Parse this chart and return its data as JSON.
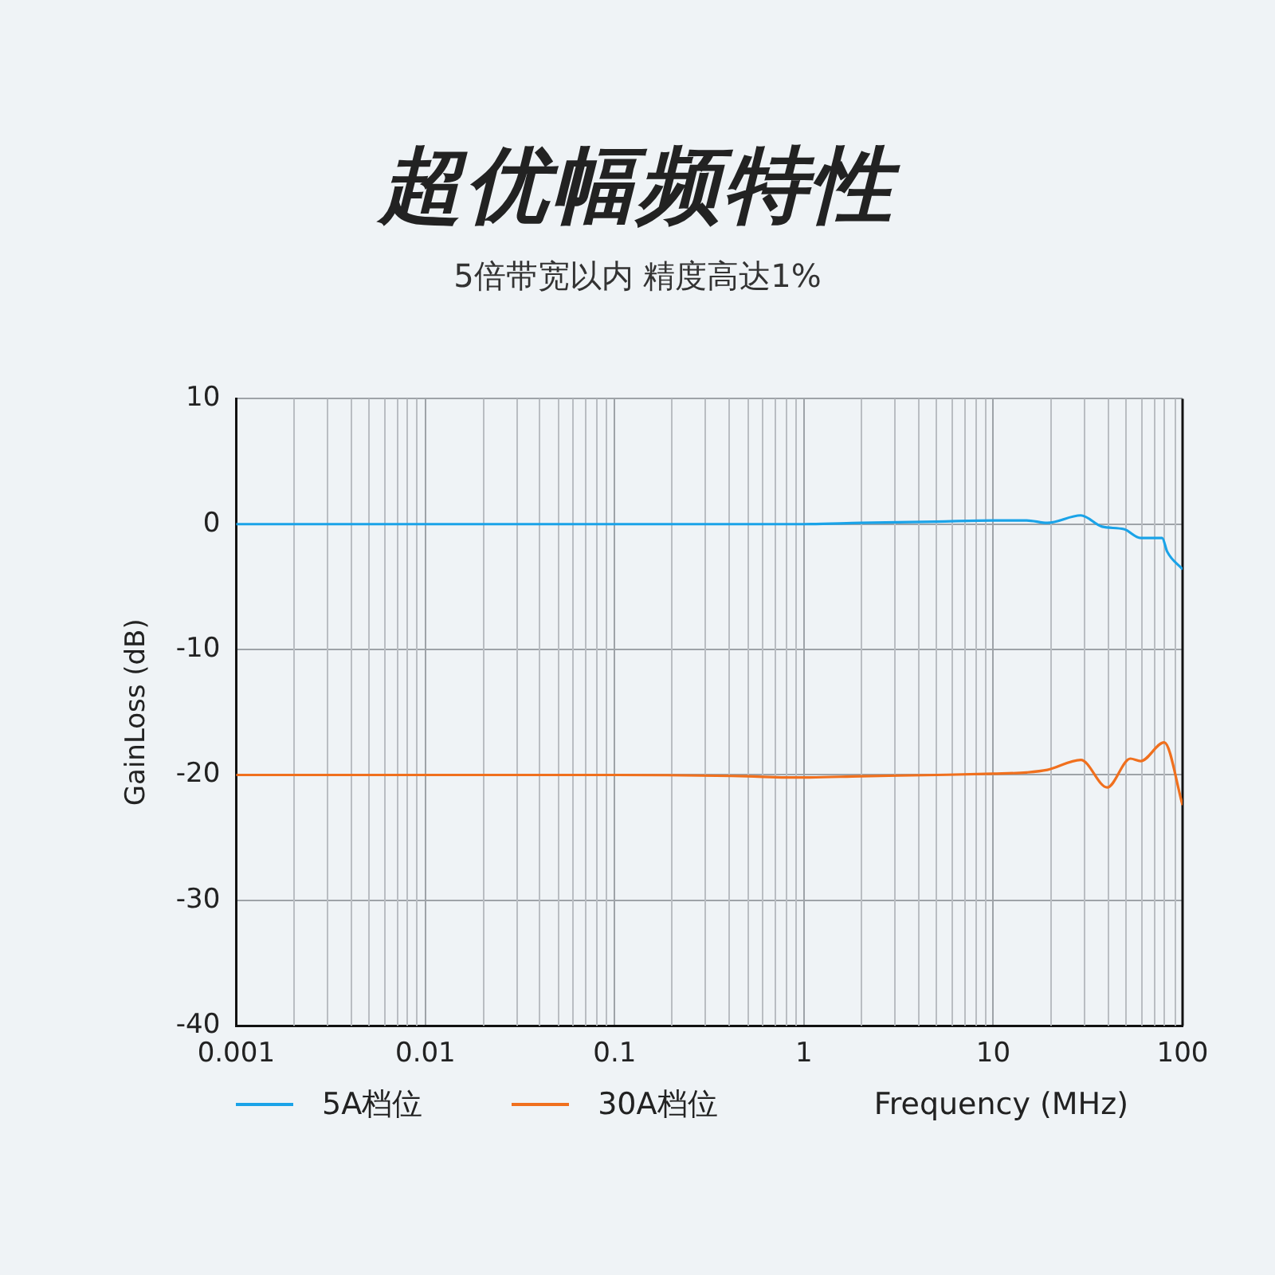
{
  "chart_data": {
    "type": "line",
    "title": "超优幅频特性",
    "subtitle": "5倍带宽以内 精度高达1%",
    "xlabel": "Frequency (MHz)",
    "ylabel": "GainLoss (dB)",
    "log": "x",
    "xlim": [
      0.001,
      100
    ],
    "xticks": [
      0.001,
      0.01,
      0.1,
      1,
      10,
      100
    ],
    "ylim": [
      -40,
      10
    ],
    "yticks": [
      -40,
      -30,
      -20,
      -10,
      0,
      10
    ],
    "grid": true,
    "legend": "bottom left",
    "series": [
      {
        "name": "5A档位",
        "color": "#1aa3e8",
        "x": [
          0.001,
          0.01,
          0.1,
          0.5,
          1,
          2,
          5,
          10,
          15,
          19.3,
          29,
          37.6,
          49,
          60,
          78,
          83,
          100
        ],
        "values": [
          0,
          0,
          0,
          0,
          0,
          0.1,
          0.2,
          0.3,
          0.3,
          0.1,
          0.7,
          -0.2,
          -0.4,
          -1.1,
          -1.1,
          -2.2,
          -3.6
        ]
      },
      {
        "name": "30A档位",
        "color": "#f0701e",
        "x": [
          0.001,
          0.01,
          0.1,
          0.5,
          0.8,
          1,
          2,
          5,
          10,
          15,
          19.3,
          29,
          40,
          53,
          60,
          80,
          100
        ],
        "values": [
          -20,
          -20,
          -20,
          -20.1,
          -20.2,
          -20.2,
          -20.1,
          -20,
          -19.9,
          -19.8,
          -19.6,
          -18.8,
          -21,
          -18.7,
          -18.9,
          -17.4,
          -22.4
        ]
      }
    ]
  }
}
